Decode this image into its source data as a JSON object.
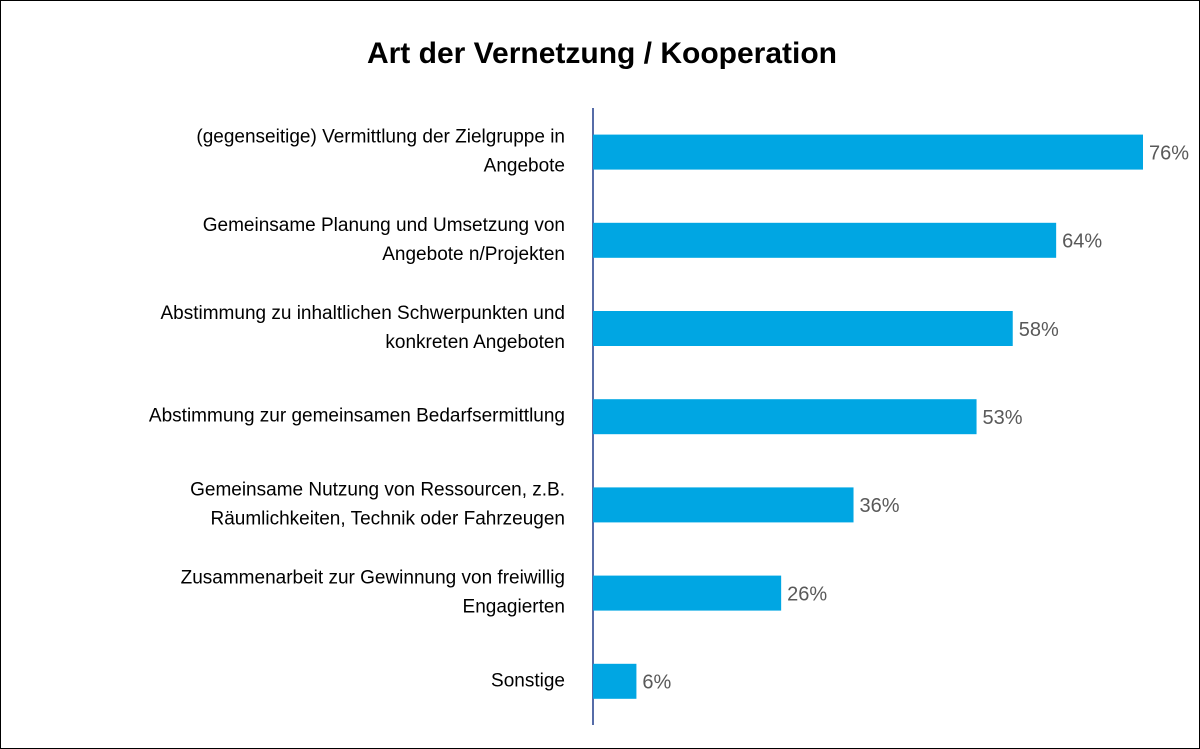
{
  "chart_data": {
    "type": "bar",
    "orientation": "horizontal",
    "title": "Art der Vernetzung / Kooperation",
    "categories": [
      "(gegenseitige) Vermittlung der Zielgruppe in\nAngebote",
      "Gemeinsame Planung und Umsetzung von\nAngebote n/Projekten",
      "Abstimmung zu inhaltlichen Schwerpunkten und\nkonkreten Angeboten",
      "Abstimmung zur gemeinsamen Bedarfsermittlung",
      "Gemeinsame Nutzung von Ressourcen, z.B.\nRäumlichkeiten, Technik oder Fahrzeugen",
      "Zusammenarbeit zur Gewinnung von freiwillig\nEngagierten",
      "Sonstige"
    ],
    "values": [
      76,
      64,
      58,
      53,
      36,
      26,
      6
    ],
    "value_labels": [
      "76%",
      "64%",
      "58%",
      "53%",
      "36%",
      "26%",
      "6%"
    ],
    "color": "#00a6e3"
  }
}
